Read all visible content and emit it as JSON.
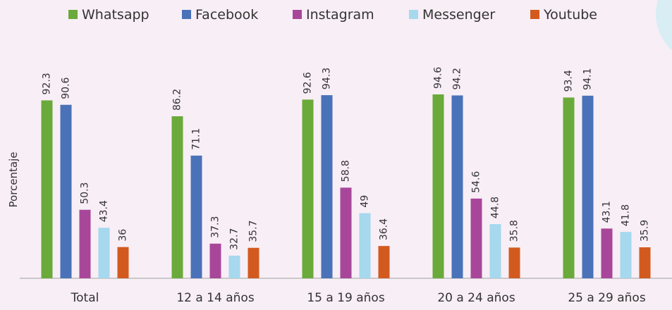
{
  "chart_data": {
    "type": "bar",
    "y_label": "Porcentaje",
    "categories": [
      "Total",
      "12 a 14 años",
      "15 a 19 años",
      "20 a 24 años",
      "25 a 29 años"
    ],
    "series": [
      {
        "name": "Whatsapp",
        "color": "#6aaa3a",
        "values": [
          92.3,
          86.2,
          92.6,
          94.6,
          93.4
        ]
      },
      {
        "name": "Facebook",
        "color": "#4a72b8",
        "values": [
          90.6,
          71.1,
          94.3,
          94.2,
          94.1
        ]
      },
      {
        "name": "Instagram",
        "color": "#a8479a",
        "values": [
          50.3,
          37.3,
          58.8,
          54.6,
          43.1
        ]
      },
      {
        "name": "Messenger",
        "color": "#a6d8ee",
        "values": [
          43.4,
          32.7,
          49,
          44.8,
          41.8
        ]
      },
      {
        "name": "Youtube",
        "color": "#d35a1e",
        "values": [
          36,
          35.7,
          36.4,
          35.8,
          35.9
        ]
      }
    ],
    "ylim": [
      24,
      100
    ]
  }
}
